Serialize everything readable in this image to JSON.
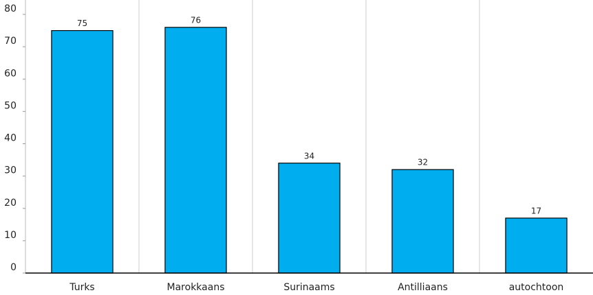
{
  "chart_data": {
    "type": "bar",
    "categories": [
      "Turks",
      "Marokkaans",
      "Surinaams",
      "Antilliaans",
      "autochtoon"
    ],
    "values": [
      75,
      76,
      34,
      32,
      17
    ],
    "color": "#00aeef",
    "ylim": [
      0,
      80
    ],
    "yticks": [
      0,
      10,
      20,
      30,
      40,
      50,
      60,
      70,
      80
    ],
    "grid": true
  }
}
